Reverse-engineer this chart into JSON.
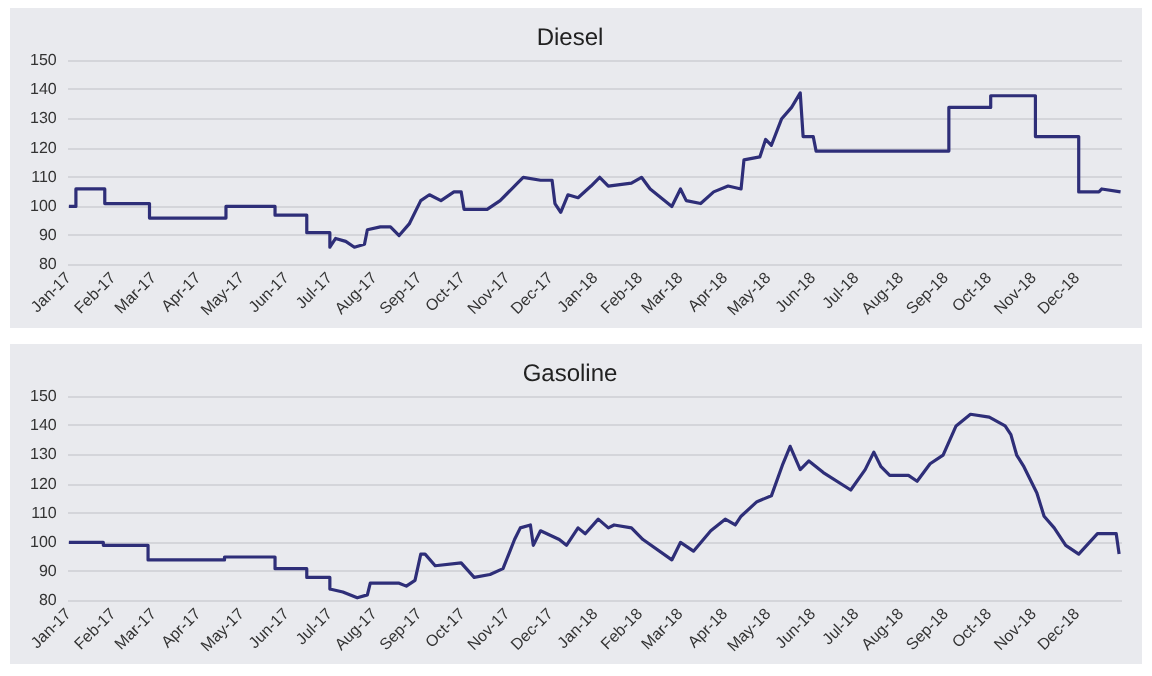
{
  "chart_data": [
    {
      "type": "line",
      "title": "Diesel",
      "color": "#2e2e78",
      "grid": "y",
      "xlim": [
        "2017-01-01",
        "2019-01-01"
      ],
      "ylim": [
        80,
        150
      ],
      "yticks": [
        80,
        90,
        100,
        110,
        120,
        130,
        140,
        150
      ],
      "xticks": [
        {
          "value": "2017-01-01",
          "label": "Jan-17"
        },
        {
          "value": "2017-02-01",
          "label": "Feb-17"
        },
        {
          "value": "2017-03-01",
          "label": "Mar-17"
        },
        {
          "value": "2017-04-01",
          "label": "Apr-17"
        },
        {
          "value": "2017-05-01",
          "label": "May-17"
        },
        {
          "value": "2017-06-01",
          "label": "Jun-17"
        },
        {
          "value": "2017-07-01",
          "label": "Jul-17"
        },
        {
          "value": "2017-08-01",
          "label": "Aug-17"
        },
        {
          "value": "2017-09-01",
          "label": "Sep-17"
        },
        {
          "value": "2017-10-01",
          "label": "Oct-17"
        },
        {
          "value": "2017-11-01",
          "label": "Nov-17"
        },
        {
          "value": "2017-12-01",
          "label": "Dec-17"
        },
        {
          "value": "2018-01-01",
          "label": "Jan-18"
        },
        {
          "value": "2018-02-01",
          "label": "Feb-18"
        },
        {
          "value": "2018-03-01",
          "label": "Mar-18"
        },
        {
          "value": "2018-04-01",
          "label": "Apr-18"
        },
        {
          "value": "2018-05-01",
          "label": "May-18"
        },
        {
          "value": "2018-06-01",
          "label": "Jun-18"
        },
        {
          "value": "2018-07-01",
          "label": "Jul-18"
        },
        {
          "value": "2018-08-01",
          "label": "Aug-18"
        },
        {
          "value": "2018-09-01",
          "label": "Sep-18"
        },
        {
          "value": "2018-10-01",
          "label": "Oct-18"
        },
        {
          "value": "2018-11-01",
          "label": "Nov-18"
        },
        {
          "value": "2018-12-01",
          "label": "Dec-18"
        }
      ],
      "x": [
        "2017-01-01",
        "2017-01-06",
        "2017-01-06",
        "2017-01-26",
        "2017-01-26",
        "2017-02-26",
        "2017-02-26",
        "2017-04-20",
        "2017-04-20",
        "2017-05-24",
        "2017-05-24",
        "2017-06-15",
        "2017-06-15",
        "2017-07-01",
        "2017-07-01",
        "2017-07-05",
        "2017-07-12",
        "2017-07-18",
        "2017-07-25",
        "2017-07-27",
        "2017-08-05",
        "2017-08-12",
        "2017-08-18",
        "2017-08-25",
        "2017-09-02",
        "2017-09-08",
        "2017-09-16",
        "2017-09-25",
        "2017-09-30",
        "2017-10-02",
        "2017-10-18",
        "2017-10-27",
        "2017-11-08",
        "2017-11-12",
        "2017-11-24",
        "2017-12-02",
        "2017-12-04",
        "2017-12-08",
        "2017-12-13",
        "2017-12-20",
        "2017-12-29",
        "2018-01-04",
        "2018-01-10",
        "2018-01-26",
        "2018-02-02",
        "2018-02-08",
        "2018-02-23",
        "2018-03-01",
        "2018-03-05",
        "2018-03-15",
        "2018-03-24",
        "2018-04-03",
        "2018-04-12",
        "2018-04-14",
        "2018-04-25",
        "2018-04-29",
        "2018-05-03",
        "2018-05-10",
        "2018-05-17",
        "2018-05-23",
        "2018-05-25",
        "2018-06-01",
        "2018-06-03",
        "2018-09-03",
        "2018-09-03",
        "2018-10-02",
        "2018-10-02",
        "2018-11-02",
        "2018-11-02",
        "2018-12-02",
        "2018-12-02",
        "2018-12-16",
        "2018-12-18",
        "2018-12-31"
      ],
      "values": [
        100,
        100,
        106,
        106,
        101,
        101,
        96,
        96,
        100,
        100,
        97,
        97,
        91,
        91,
        86,
        89,
        88,
        86,
        87,
        92,
        93,
        93,
        90,
        94,
        102,
        104,
        102,
        105,
        105,
        99,
        99,
        102,
        108,
        110,
        109,
        109,
        101,
        98,
        104,
        103,
        107,
        110,
        107,
        108,
        110,
        106,
        100,
        106,
        102,
        101,
        105,
        107,
        106,
        116,
        117,
        123,
        121,
        130,
        134,
        139,
        124,
        124,
        119,
        119,
        134,
        134,
        138,
        138,
        124,
        124,
        105,
        105,
        106,
        105
      ]
    },
    {
      "type": "line",
      "title": "Gasoline",
      "color": "#2e2e78",
      "grid": "y",
      "xlim": [
        "2017-01-01",
        "2019-01-01"
      ],
      "ylim": [
        80,
        150
      ],
      "yticks": [
        80,
        90,
        100,
        110,
        120,
        130,
        140,
        150
      ],
      "xticks": [
        {
          "value": "2017-01-01",
          "label": "Jan-17"
        },
        {
          "value": "2017-02-01",
          "label": "Feb-17"
        },
        {
          "value": "2017-03-01",
          "label": "Mar-17"
        },
        {
          "value": "2017-04-01",
          "label": "Apr-17"
        },
        {
          "value": "2017-05-01",
          "label": "May-17"
        },
        {
          "value": "2017-06-01",
          "label": "Jun-17"
        },
        {
          "value": "2017-07-01",
          "label": "Jul-17"
        },
        {
          "value": "2017-08-01",
          "label": "Aug-17"
        },
        {
          "value": "2017-09-01",
          "label": "Sep-17"
        },
        {
          "value": "2017-10-01",
          "label": "Oct-17"
        },
        {
          "value": "2017-11-01",
          "label": "Nov-17"
        },
        {
          "value": "2017-12-01",
          "label": "Dec-17"
        },
        {
          "value": "2018-01-01",
          "label": "Jan-18"
        },
        {
          "value": "2018-02-01",
          "label": "Feb-18"
        },
        {
          "value": "2018-03-01",
          "label": "Mar-18"
        },
        {
          "value": "2018-04-01",
          "label": "Apr-18"
        },
        {
          "value": "2018-05-01",
          "label": "May-18"
        },
        {
          "value": "2018-06-01",
          "label": "Jun-18"
        },
        {
          "value": "2018-07-01",
          "label": "Jul-18"
        },
        {
          "value": "2018-08-01",
          "label": "Aug-18"
        },
        {
          "value": "2018-09-01",
          "label": "Sep-18"
        },
        {
          "value": "2018-10-01",
          "label": "Oct-18"
        },
        {
          "value": "2018-11-01",
          "label": "Nov-18"
        },
        {
          "value": "2018-12-01",
          "label": "Dec-18"
        }
      ],
      "x": [
        "2017-01-01",
        "2017-01-25",
        "2017-01-25",
        "2017-02-25",
        "2017-02-25",
        "2017-04-19",
        "2017-04-19",
        "2017-05-24",
        "2017-05-24",
        "2017-06-15",
        "2017-06-15",
        "2017-07-01",
        "2017-07-01",
        "2017-07-10",
        "2017-07-20",
        "2017-07-27",
        "2017-07-29",
        "2017-08-18",
        "2017-08-23",
        "2017-08-29",
        "2017-09-02",
        "2017-09-05",
        "2017-09-12",
        "2017-09-30",
        "2017-10-09",
        "2017-10-20",
        "2017-10-29",
        "2017-11-06",
        "2017-11-10",
        "2017-11-17",
        "2017-11-19",
        "2017-11-24",
        "2017-12-07",
        "2017-12-12",
        "2017-12-20",
        "2017-12-25",
        "2018-01-03",
        "2018-01-10",
        "2018-01-14",
        "2018-01-26",
        "2018-02-03",
        "2018-02-23",
        "2018-03-01",
        "2018-03-10",
        "2018-03-22",
        "2018-04-01",
        "2018-04-08",
        "2018-04-12",
        "2018-04-23",
        "2018-05-03",
        "2018-05-11",
        "2018-05-16",
        "2018-05-23",
        "2018-05-29",
        "2018-06-08",
        "2018-06-27",
        "2018-07-07",
        "2018-07-13",
        "2018-07-18",
        "2018-07-24",
        "2018-08-06",
        "2018-08-12",
        "2018-08-21",
        "2018-08-30",
        "2018-09-08",
        "2018-09-18",
        "2018-10-01",
        "2018-10-12",
        "2018-10-16",
        "2018-10-20",
        "2018-10-25",
        "2018-11-03",
        "2018-11-08",
        "2018-11-15",
        "2018-11-23",
        "2018-12-02",
        "2018-12-15",
        "2018-12-28",
        "2018-12-30"
      ],
      "values": [
        100,
        100,
        99,
        99,
        94,
        94,
        95,
        95,
        91,
        91,
        88,
        88,
        84,
        83,
        81,
        82,
        86,
        86,
        85,
        87,
        96,
        96,
        92,
        93,
        88,
        89,
        91,
        101,
        105,
        106,
        99,
        104,
        101,
        99,
        105,
        103,
        108,
        105,
        106,
        105,
        101,
        94,
        100,
        97,
        104,
        108,
        106,
        109,
        114,
        116,
        127,
        133,
        125,
        128,
        124,
        118,
        125,
        131,
        126,
        123,
        123,
        121,
        127,
        130,
        140,
        144,
        143,
        140,
        137,
        130,
        126,
        117,
        109,
        105,
        99,
        96,
        103,
        103,
        96
      ]
    }
  ]
}
